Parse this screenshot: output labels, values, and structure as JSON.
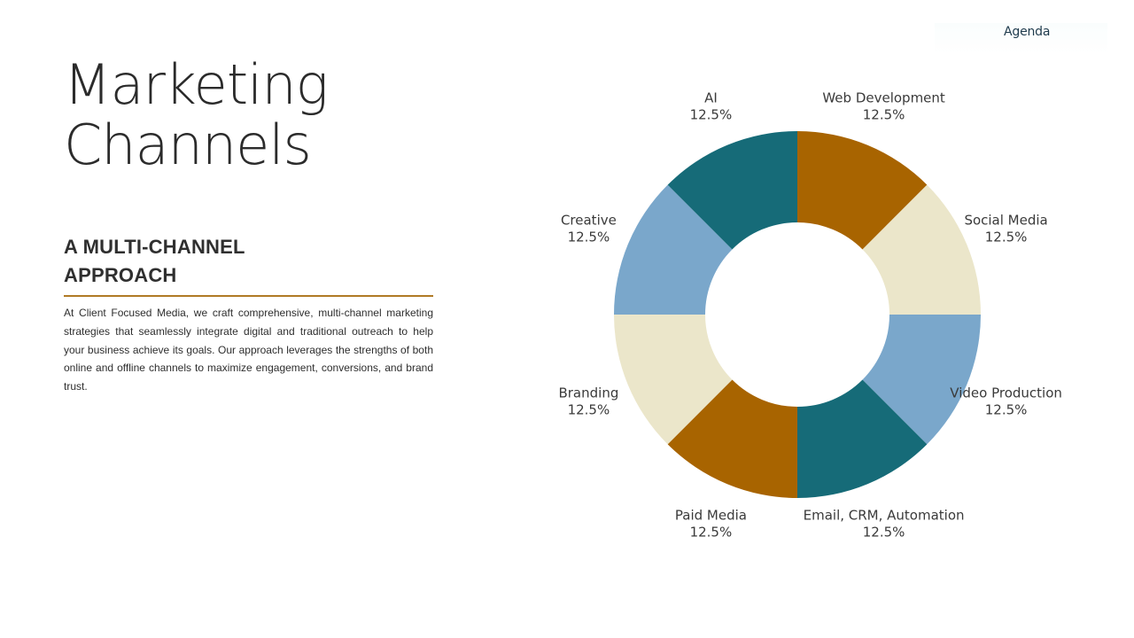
{
  "nav": {
    "agenda_label": "Agenda"
  },
  "title": {
    "line1": "Marketing",
    "line2": "Channels"
  },
  "subtitle": {
    "line1": "A MULTI-CHANNEL",
    "line2": "APPROACH"
  },
  "body_text": "At Client Focused Media, we craft comprehensive, multi-channel marketing strategies that seamlessly integrate digital and traditional outreach to help your business achieve its goals. Our approach leverages the strengths of both online and offline channels to maximize engagement, conversions, and brand trust.",
  "colors": {
    "accent_rule": "#b07a26",
    "teal": "#166b78",
    "amber": "#a86400",
    "cream": "#ebe6ca",
    "blue": "#7aa7cb"
  },
  "chart_data": {
    "type": "pie",
    "donut": true,
    "start_angle_deg": 0,
    "direction": "clockwise",
    "slices": [
      {
        "label": "Web Development",
        "value": 12.5,
        "display": "12.5%",
        "color": "#a86400"
      },
      {
        "label": "Social Media",
        "value": 12.5,
        "display": "12.5%",
        "color": "#ebe6ca"
      },
      {
        "label": "Video Production",
        "value": 12.5,
        "display": "12.5%",
        "color": "#7aa7cb"
      },
      {
        "label": "Email, CRM, Automation",
        "value": 12.5,
        "display": "12.5%",
        "color": "#166b78"
      },
      {
        "label": "Paid Media",
        "value": 12.5,
        "display": "12.5%",
        "color": "#a86400"
      },
      {
        "label": "Branding",
        "value": 12.5,
        "display": "12.5%",
        "color": "#ebe6ca"
      },
      {
        "label": "Creative",
        "value": 12.5,
        "display": "12.5%",
        "color": "#7aa7cb"
      },
      {
        "label": "AI",
        "value": 12.5,
        "display": "12.5%",
        "color": "#166b78"
      }
    ]
  }
}
